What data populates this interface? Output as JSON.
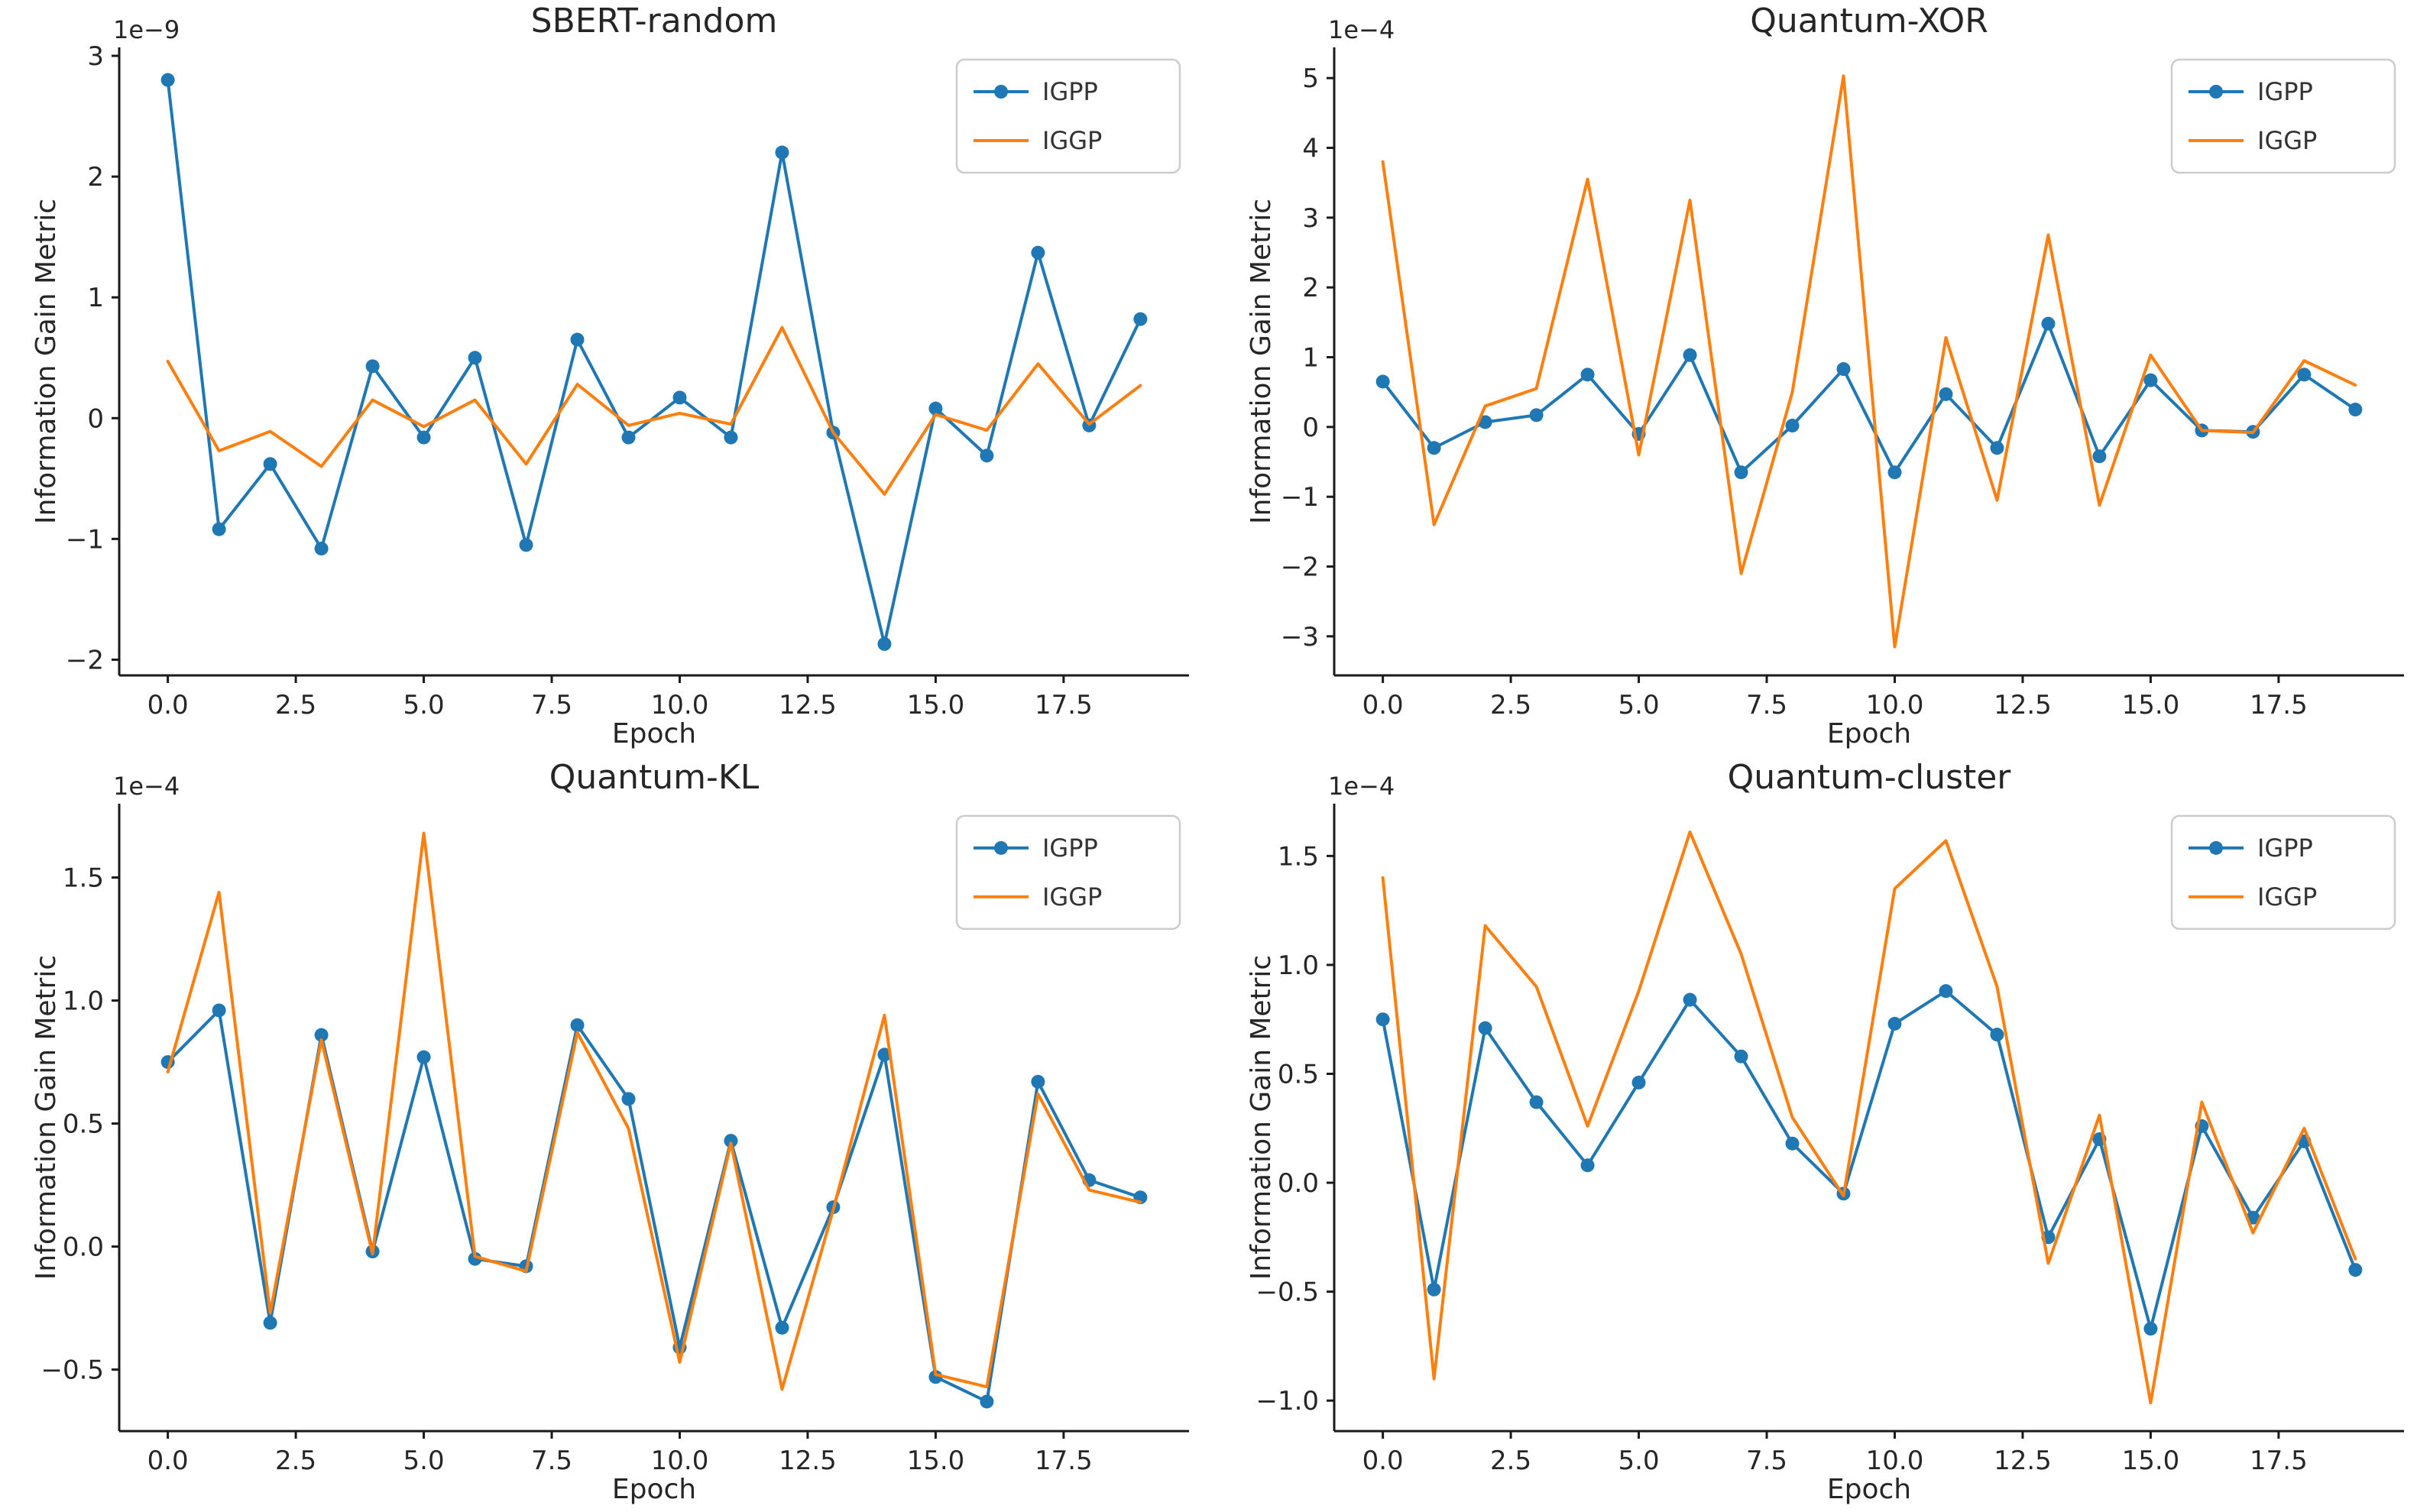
{
  "figure": {
    "background": "#ffffff",
    "text_color": "#262626",
    "spine_color": "#1a1a1a",
    "legend_border_color": "#cccccc",
    "legend_text_color": "#333333",
    "series_colors": {
      "IGPP": "#1f77b4",
      "IGGP": "#ff7f0e"
    }
  },
  "chart_data": [
    {
      "type": "line",
      "title": "SBERT-random",
      "xlabel": "Epoch",
      "ylabel": "Information Gain Metric",
      "offset_text": "1e−9",
      "legend": [
        "IGPP",
        "IGGP"
      ],
      "legend_position": "upper right",
      "grid": false,
      "x": [
        0,
        1,
        2,
        3,
        4,
        5,
        6,
        7,
        8,
        9,
        10,
        11,
        12,
        13,
        14,
        15,
        16,
        17,
        18,
        19
      ],
      "series": [
        {
          "name": "IGPP",
          "color": "#1f77b4",
          "marker": "circle",
          "values": [
            2.8,
            -0.92,
            -0.38,
            -1.08,
            0.43,
            -0.16,
            0.5,
            -1.05,
            0.65,
            -0.16,
            0.17,
            -0.16,
            2.2,
            -0.12,
            -1.87,
            0.08,
            -0.31,
            1.37,
            -0.06,
            0.82
          ]
        },
        {
          "name": "IGGP",
          "color": "#ff7f0e",
          "marker": "none",
          "values": [
            0.47,
            -0.27,
            -0.11,
            -0.4,
            0.15,
            -0.07,
            0.15,
            -0.38,
            0.28,
            -0.06,
            0.04,
            -0.05,
            0.75,
            -0.12,
            -0.63,
            0.03,
            -0.1,
            0.45,
            -0.05,
            0.27
          ]
        }
      ],
      "xticks": {
        "values": [
          0,
          2.5,
          5,
          7.5,
          10,
          12.5,
          15,
          17.5
        ],
        "labels": [
          "0.0",
          "2.5",
          "5.0",
          "7.5",
          "10.0",
          "12.5",
          "15.0",
          "17.5"
        ]
      },
      "yticks": {
        "values": [
          -2,
          -1,
          0,
          1,
          2,
          3
        ],
        "labels": [
          "−2",
          "−1",
          "0",
          "1",
          "2",
          "3"
        ]
      },
      "xlim": [
        -0.95,
        19.95
      ],
      "ylim": [
        -2.13,
        3.07
      ]
    },
    {
      "type": "line",
      "title": "Quantum-XOR",
      "xlabel": "Epoch",
      "ylabel": "Information Gain Metric",
      "offset_text": "1e−4",
      "legend": [
        "IGPP",
        "IGGP"
      ],
      "legend_position": "upper right",
      "grid": false,
      "x": [
        0,
        1,
        2,
        3,
        4,
        5,
        6,
        7,
        8,
        9,
        10,
        11,
        12,
        13,
        14,
        15,
        16,
        17,
        18,
        19
      ],
      "series": [
        {
          "name": "IGPP",
          "color": "#1f77b4",
          "marker": "circle",
          "values": [
            0.65,
            -0.3,
            0.07,
            0.17,
            0.75,
            -0.1,
            1.03,
            -0.65,
            0.02,
            0.83,
            -0.65,
            0.47,
            -0.3,
            1.48,
            -0.42,
            0.67,
            -0.05,
            -0.07,
            0.75,
            0.25
          ]
        },
        {
          "name": "IGGP",
          "color": "#ff7f0e",
          "marker": "none",
          "values": [
            3.8,
            -1.4,
            0.3,
            0.55,
            3.55,
            -0.4,
            3.25,
            -2.1,
            0.5,
            5.03,
            -3.15,
            1.28,
            -1.05,
            2.75,
            -1.12,
            1.03,
            -0.05,
            -0.08,
            0.95,
            0.6
          ]
        }
      ],
      "xticks": {
        "values": [
          0,
          2.5,
          5,
          7.5,
          10,
          12.5,
          15,
          17.5
        ],
        "labels": [
          "0.0",
          "2.5",
          "5.0",
          "7.5",
          "10.0",
          "12.5",
          "15.0",
          "17.5"
        ]
      },
      "yticks": {
        "values": [
          -3,
          -2,
          -1,
          0,
          1,
          2,
          3,
          4,
          5
        ],
        "labels": [
          "−3",
          "−2",
          "−1",
          "0",
          "1",
          "2",
          "3",
          "4",
          "5"
        ]
      },
      "xlim": [
        -0.95,
        19.95
      ],
      "ylim": [
        -3.56,
        5.44
      ]
    },
    {
      "type": "line",
      "title": "Quantum-KL",
      "xlabel": "Epoch",
      "ylabel": "Information Gain Metric",
      "offset_text": "1e−4",
      "legend": [
        "IGPP",
        "IGGP"
      ],
      "legend_position": "upper right",
      "grid": false,
      "x": [
        0,
        1,
        2,
        3,
        4,
        5,
        6,
        7,
        8,
        9,
        10,
        11,
        12,
        13,
        14,
        15,
        16,
        17,
        18,
        19
      ],
      "series": [
        {
          "name": "IGPP",
          "color": "#1f77b4",
          "marker": "circle",
          "values": [
            0.75,
            0.96,
            -0.31,
            0.86,
            -0.02,
            0.77,
            -0.05,
            -0.08,
            0.9,
            0.6,
            -0.41,
            0.43,
            -0.33,
            0.16,
            0.78,
            -0.53,
            -0.63,
            0.67,
            0.27,
            0.2
          ]
        },
        {
          "name": "IGGP",
          "color": "#ff7f0e",
          "marker": "none",
          "values": [
            0.71,
            1.44,
            -0.27,
            0.84,
            -0.03,
            1.68,
            -0.04,
            -0.1,
            0.87,
            0.48,
            -0.47,
            0.42,
            -0.58,
            0.15,
            0.94,
            -0.52,
            -0.57,
            0.62,
            0.23,
            0.18
          ]
        }
      ],
      "xticks": {
        "values": [
          0,
          2.5,
          5,
          7.5,
          10,
          12.5,
          15,
          17.5
        ],
        "labels": [
          "0.0",
          "2.5",
          "5.0",
          "7.5",
          "10.0",
          "12.5",
          "15.0",
          "17.5"
        ]
      },
      "yticks": {
        "values": [
          -0.5,
          0,
          0.5,
          1,
          1.5
        ],
        "labels": [
          "−0.5",
          "0.0",
          "0.5",
          "1.0",
          "1.5"
        ]
      },
      "xlim": [
        -0.95,
        19.95
      ],
      "ylim": [
        -0.75,
        1.8
      ]
    },
    {
      "type": "line",
      "title": "Quantum-cluster",
      "xlabel": "Epoch",
      "ylabel": "Information Gain Metric",
      "offset_text": "1e−4",
      "legend": [
        "IGPP",
        "IGGP"
      ],
      "legend_position": "upper right",
      "grid": false,
      "x": [
        0,
        1,
        2,
        3,
        4,
        5,
        6,
        7,
        8,
        9,
        10,
        11,
        12,
        13,
        14,
        15,
        16,
        17,
        18,
        19
      ],
      "series": [
        {
          "name": "IGPP",
          "color": "#1f77b4",
          "marker": "circle",
          "values": [
            0.75,
            -0.49,
            0.71,
            0.37,
            0.08,
            0.46,
            0.84,
            0.58,
            0.18,
            -0.05,
            0.73,
            0.88,
            0.68,
            -0.25,
            0.2,
            -0.67,
            0.26,
            -0.16,
            0.19,
            -0.4
          ]
        },
        {
          "name": "IGGP",
          "color": "#ff7f0e",
          "marker": "none",
          "values": [
            1.4,
            -0.9,
            1.18,
            0.9,
            0.26,
            0.88,
            1.61,
            1.05,
            0.3,
            -0.06,
            1.35,
            1.57,
            0.9,
            -0.37,
            0.31,
            -1.01,
            0.37,
            -0.23,
            0.25,
            -0.35
          ]
        }
      ],
      "xticks": {
        "values": [
          0,
          2.5,
          5,
          7.5,
          10,
          12.5,
          15,
          17.5
        ],
        "labels": [
          "0.0",
          "2.5",
          "5.0",
          "7.5",
          "10.0",
          "12.5",
          "15.0",
          "17.5"
        ]
      },
      "yticks": {
        "values": [
          -1,
          -0.5,
          0,
          0.5,
          1,
          1.5
        ],
        "labels": [
          "−1.0",
          "−0.5",
          "0.0",
          "0.5",
          "1.0",
          "1.5"
        ]
      },
      "xlim": [
        -0.95,
        19.95
      ],
      "ylim": [
        -1.14,
        1.74
      ]
    }
  ]
}
